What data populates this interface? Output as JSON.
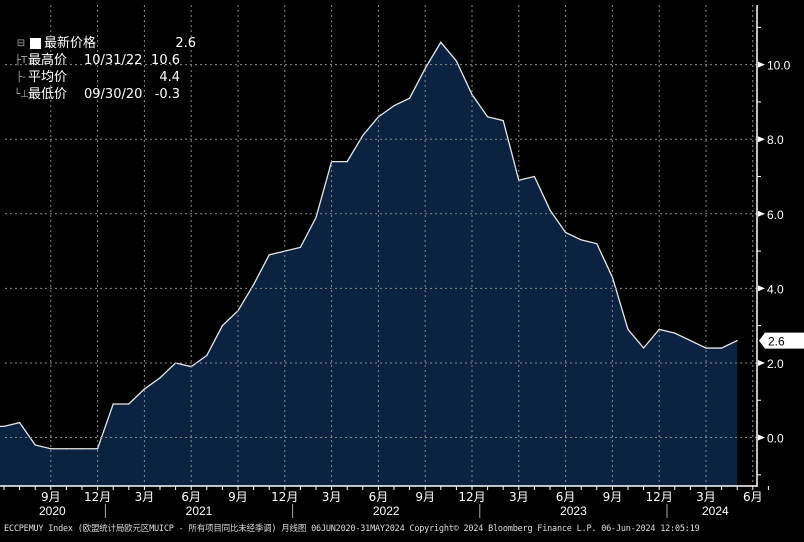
{
  "chart_data": {
    "type": "area",
    "title": "",
    "xlabel": "",
    "ylabel": "",
    "x_start": "2020-06",
    "x_end": "2024-05",
    "x_months": [
      "2020-06",
      "2020-07",
      "2020-08",
      "2020-09",
      "2020-10",
      "2020-11",
      "2020-12",
      "2021-01",
      "2021-02",
      "2021-03",
      "2021-04",
      "2021-05",
      "2021-06",
      "2021-07",
      "2021-08",
      "2021-09",
      "2021-10",
      "2021-11",
      "2021-12",
      "2022-01",
      "2022-02",
      "2022-03",
      "2022-04",
      "2022-05",
      "2022-06",
      "2022-07",
      "2022-08",
      "2022-09",
      "2022-10",
      "2022-11",
      "2022-12",
      "2023-01",
      "2023-02",
      "2023-03",
      "2023-04",
      "2023-05",
      "2023-06",
      "2023-07",
      "2023-08",
      "2023-09",
      "2023-10",
      "2023-11",
      "2023-12",
      "2024-01",
      "2024-02",
      "2024-03",
      "2024-04",
      "2024-05"
    ],
    "values": [
      0.3,
      0.4,
      -0.2,
      -0.3,
      -0.3,
      -0.3,
      -0.3,
      0.9,
      0.9,
      1.3,
      1.6,
      2.0,
      1.9,
      2.2,
      3.0,
      3.4,
      4.1,
      4.9,
      5.0,
      5.1,
      5.9,
      7.4,
      7.4,
      8.1,
      8.6,
      8.9,
      9.1,
      9.9,
      10.6,
      10.1,
      9.2,
      8.6,
      8.5,
      6.9,
      7.0,
      6.1,
      5.5,
      5.3,
      5.2,
      4.3,
      2.9,
      2.4,
      2.9,
      2.8,
      2.6,
      2.4,
      2.4,
      2.6
    ],
    "ylim": [
      -1.3,
      11.6
    ],
    "y_ticks": [
      "0.0",
      "2.0",
      "4.0",
      "6.0",
      "8.0",
      "10.0"
    ],
    "y_tick_values": [
      0,
      2,
      4,
      6,
      8,
      10
    ],
    "x_tick_labels": [
      {
        "month": "2020-09",
        "label": "9月"
      },
      {
        "month": "2020-12",
        "label": "12月"
      },
      {
        "month": "2021-03",
        "label": "3月"
      },
      {
        "month": "2021-06",
        "label": "6月"
      },
      {
        "month": "2021-09",
        "label": "9月"
      },
      {
        "month": "2021-12",
        "label": "12月"
      },
      {
        "month": "2022-03",
        "label": "3月"
      },
      {
        "month": "2022-06",
        "label": "6月"
      },
      {
        "month": "2022-09",
        "label": "9月"
      },
      {
        "month": "2022-12",
        "label": "12月"
      },
      {
        "month": "2023-03",
        "label": "3月"
      },
      {
        "month": "2023-06",
        "label": "6月"
      },
      {
        "month": "2023-09",
        "label": "9月"
      },
      {
        "month": "2023-12",
        "label": "12月"
      },
      {
        "month": "2024-03",
        "label": "3月"
      },
      {
        "month": "2024-06",
        "label": "6月"
      }
    ],
    "year_labels": [
      "2020",
      "2021",
      "2022",
      "2023",
      "2024"
    ],
    "last_value_label": "2.6",
    "grid": true,
    "legend_placement": "top-left",
    "colors": {
      "background": "#000000",
      "fill": "#0b2240",
      "line": "#e8e8e8",
      "grid": "#8a8a8a"
    }
  },
  "legend": [
    {
      "symbol": "square",
      "label": "最新价格",
      "date": "",
      "value": "2.6"
    },
    {
      "symbol": "high",
      "label": "最高价",
      "date": "10/31/22",
      "value": "10.6"
    },
    {
      "symbol": "avg",
      "label": "平均价",
      "date": "",
      "value": "4.4"
    },
    {
      "symbol": "low",
      "label": "最低价",
      "date": "09/30/20",
      "value": "-0.3"
    }
  ],
  "footer": "ECCPEMUY Index (欧盟统计局欧元区MUICP - 所有项目同比未经季调)  月线图 06JUN2020-31MAY2024 Copyright© 2024 Bloomberg Finance L.P. 06-Jun-2024 12:05:19"
}
